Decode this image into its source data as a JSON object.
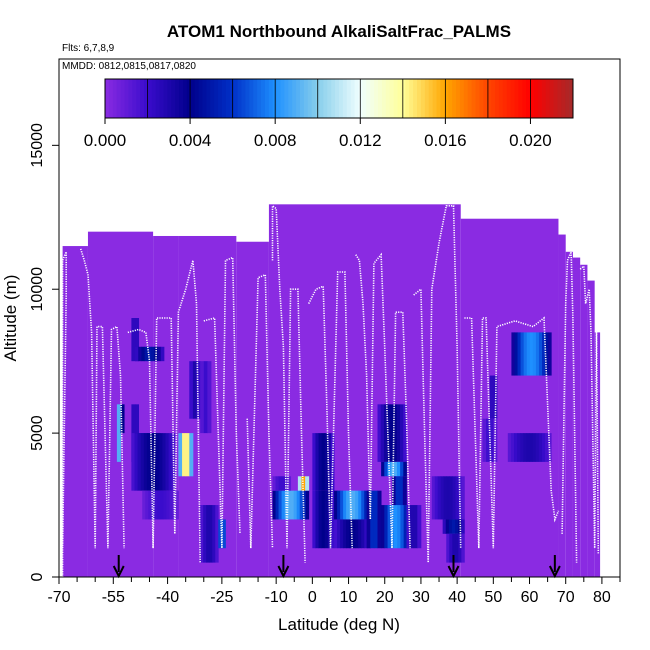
{
  "chart_data": {
    "type": "heatmap",
    "title": "ATOM1 Northbound AlkaliSaltFrac_PALMS",
    "subtitle_flights": "Flts: 6,7,8,9",
    "subtitle_dates": "MMDD: 0812,0815,0817,0820",
    "xlabel": "Latitude (deg N)",
    "ylabel": "Altitude (m)",
    "xlim": [
      -70,
      85
    ],
    "ylim": [
      0,
      18000
    ],
    "x_ticks": [
      "-70",
      "-55",
      "-40",
      "-25",
      "-10",
      "0",
      "10",
      "20",
      "30",
      "40",
      "50",
      "60",
      "70",
      "80"
    ],
    "x_tick_values": [
      -70,
      -55,
      -40,
      -25,
      -10,
      0,
      10,
      20,
      30,
      40,
      50,
      60,
      70,
      80
    ],
    "x_minor_values": [
      -65,
      -60,
      -50,
      -45,
      -35,
      -30,
      -20,
      -15,
      -5,
      5,
      15,
      25,
      35,
      45,
      55,
      65,
      75,
      85
    ],
    "y_ticks": [
      "0",
      "5000",
      "10000",
      "15000"
    ],
    "y_tick_values": [
      0,
      5000,
      10000,
      15000
    ],
    "colorbar": {
      "min": 0,
      "max": 0.022,
      "tick_labels": [
        "0.000",
        "0.004",
        "0.008",
        "0.012",
        "0.016",
        "0.020"
      ],
      "tick_values": [
        0,
        0.004,
        0.008,
        0.012,
        0.016,
        0.02
      ],
      "colors": [
        "#8a2be2",
        "#3a0ccc",
        "#00008b",
        "#0030c8",
        "#1e90ff",
        "#87ceeb",
        "#f0ffff",
        "#ffff99",
        "#ffa500",
        "#ff4500",
        "#ff0000",
        "#a52a2a"
      ]
    },
    "arrow_latitudes": [
      -53.5,
      -8,
      39,
      67
    ],
    "background_value": 0,
    "coverage_tops": [
      {
        "x0": -69,
        "x1": -62,
        "alt": 11500
      },
      {
        "x0": -62,
        "x1": -44,
        "alt": 12000
      },
      {
        "x0": -44,
        "x1": -37,
        "alt": 11850
      },
      {
        "x0": -37,
        "x1": -21,
        "alt": 11850
      },
      {
        "x0": -21,
        "x1": -12,
        "alt": 11650
      },
      {
        "x0": -12,
        "x1": 41,
        "alt": 12950
      },
      {
        "x0": 41,
        "x1": 68,
        "alt": 12450
      },
      {
        "x0": 68,
        "x1": 70,
        "alt": 11900
      },
      {
        "x0": 70,
        "x1": 72,
        "alt": 11300
      },
      {
        "x0": 72,
        "x1": 74,
        "alt": 11100
      },
      {
        "x0": 74,
        "x1": 76,
        "alt": 10850
      },
      {
        "x0": 76,
        "x1": 78,
        "alt": 10300
      },
      {
        "x0": 78,
        "x1": 79.5,
        "alt": 8500
      }
    ],
    "cells": [
      {
        "x0": -54,
        "x1": -53,
        "y0": 4000,
        "y1": 6000,
        "v": 0.009
      },
      {
        "x0": -53,
        "x1": -52,
        "y0": 5000,
        "y1": 6000,
        "v": 0.004
      },
      {
        "x0": -50,
        "x1": -48,
        "y0": 5000,
        "y1": 6000,
        "v": 0.003
      },
      {
        "x0": -50,
        "x1": -48,
        "y0": 7500,
        "y1": 9000,
        "v": 0.003
      },
      {
        "x0": -49,
        "x1": -41,
        "y0": 7500,
        "y1": 8000,
        "v": 0.005
      },
      {
        "x0": -50,
        "x1": -42,
        "y0": 4000,
        "y1": 5000,
        "v": 0.006
      },
      {
        "x0": -50,
        "x1": -38,
        "y0": 3000,
        "y1": 5000,
        "v": 0.004
      },
      {
        "x0": -47,
        "x1": -37,
        "y0": 2000,
        "y1": 3000,
        "v": 0.002
      },
      {
        "x0": -37,
        "x1": -33,
        "y0": 3500,
        "y1": 5000,
        "v": 0.015
      },
      {
        "x0": -34,
        "x1": -31,
        "y0": 5500,
        "y1": 7500,
        "v": 0.003
      },
      {
        "x0": -31,
        "x1": -28,
        "y0": 5000,
        "y1": 7500,
        "v": 0.002
      },
      {
        "x0": -31,
        "x1": -26,
        "y0": 500,
        "y1": 2500,
        "v": 0.003
      },
      {
        "x0": -26,
        "x1": -24,
        "y0": 1000,
        "y1": 2000,
        "v": 0.008
      },
      {
        "x0": -11,
        "x1": -1,
        "y0": 2000,
        "y1": 3000,
        "v": 0.009
      },
      {
        "x0": -11,
        "x1": -6,
        "y0": 3000,
        "y1": 3500,
        "v": 0.002
      },
      {
        "x0": -4,
        "x1": -1,
        "y0": 3000,
        "y1": 3500,
        "v": 0.016
      },
      {
        "x0": 0,
        "x1": 6,
        "y0": 3000,
        "y1": 5000,
        "v": 0.004
      },
      {
        "x0": 0,
        "x1": 6,
        "y0": 1000,
        "y1": 3000,
        "v": 0.004
      },
      {
        "x0": 6,
        "x1": 16,
        "y0": 2000,
        "y1": 3000,
        "v": 0.009
      },
      {
        "x0": 6,
        "x1": 16,
        "y0": 1000,
        "y1": 2000,
        "v": 0.004
      },
      {
        "x0": 15,
        "x1": 19,
        "y0": 1000,
        "y1": 3000,
        "v": 0.006
      },
      {
        "x0": 18,
        "x1": 26,
        "y0": 4000,
        "y1": 6000,
        "v": 0.004
      },
      {
        "x0": 19,
        "x1": 26,
        "y0": 3500,
        "y1": 4000,
        "v": 0.009
      },
      {
        "x0": 19,
        "x1": 27,
        "y0": 1000,
        "y1": 2500,
        "v": 0.008
      },
      {
        "x0": 22,
        "x1": 26,
        "y0": 2500,
        "y1": 3500,
        "v": 0.006
      },
      {
        "x0": 26,
        "x1": 30,
        "y0": 1000,
        "y1": 2500,
        "v": 0.003
      },
      {
        "x0": 33,
        "x1": 42,
        "y0": 2000,
        "y1": 3500,
        "v": 0.003
      },
      {
        "x0": 36,
        "x1": 42,
        "y0": 1500,
        "y1": 2000,
        "v": 0.005
      },
      {
        "x0": 37,
        "x1": 42,
        "y0": 500,
        "y1": 1500,
        "v": 0.003
      },
      {
        "x0": 47,
        "x1": 51,
        "y0": 4000,
        "y1": 5500,
        "v": 0.002
      },
      {
        "x0": 49,
        "x1": 51,
        "y0": 5500,
        "y1": 7000,
        "v": 0.003
      },
      {
        "x0": 55,
        "x1": 66,
        "y0": 7000,
        "y1": 8500,
        "v": 0.008
      },
      {
        "x0": 54,
        "x1": 66,
        "y0": 4000,
        "y1": 5000,
        "v": 0.003
      }
    ],
    "flight_tracks": [
      [
        [
          -69,
          0
        ],
        [
          -69,
          11000
        ],
        [
          -68,
          11300
        ],
        [
          -68,
          9800
        ],
        [
          -69,
          1000
        ]
      ],
      [
        [
          -64,
          11400
        ],
        [
          -63,
          11000
        ],
        [
          -62,
          10500
        ],
        [
          -61,
          8500
        ],
        [
          -60,
          1000
        ],
        [
          -59.5,
          8700
        ],
        [
          -58,
          8700
        ],
        [
          -56.5,
          1000
        ],
        [
          -55.5,
          8600
        ],
        [
          -54,
          8700
        ],
        [
          -53,
          7000
        ],
        [
          -52,
          1000
        ]
      ],
      [
        [
          -51,
          8500
        ],
        [
          -48,
          8600
        ],
        [
          -46,
          8500
        ],
        [
          -45,
          7500
        ],
        [
          -44,
          1000
        ],
        [
          -43,
          9000
        ],
        [
          -39,
          9000
        ],
        [
          -38,
          1500
        ],
        [
          -37,
          9200
        ],
        [
          -35,
          10000
        ],
        [
          -33,
          11000
        ],
        [
          -32,
          9500
        ],
        [
          -31,
          500
        ]
      ],
      [
        [
          -30,
          8900
        ],
        [
          -27,
          9000
        ],
        [
          -25,
          1000
        ],
        [
          -24,
          11000
        ],
        [
          -22,
          11100
        ],
        [
          -21,
          5000
        ],
        [
          -20,
          1500
        ]
      ],
      [
        [
          -18,
          5500
        ],
        [
          -17,
          1000
        ],
        [
          -15,
          10400
        ],
        [
          -13,
          10500
        ],
        [
          -12,
          5000
        ],
        [
          -11,
          1000
        ]
      ],
      [
        [
          -11,
          11000
        ],
        [
          -11,
          12900
        ],
        [
          -10,
          12800
        ],
        [
          -9,
          10000
        ],
        [
          -8,
          8000
        ],
        [
          -7,
          1000
        ],
        [
          -6,
          10000
        ],
        [
          -4,
          10000
        ],
        [
          -3,
          5000
        ],
        [
          -2,
          500
        ]
      ],
      [
        [
          -1,
          9500
        ],
        [
          1,
          10000
        ],
        [
          3,
          10100
        ],
        [
          4,
          6000
        ],
        [
          5,
          1000
        ],
        [
          7,
          10600
        ],
        [
          9,
          10600
        ],
        [
          10,
          5000
        ],
        [
          11,
          1000
        ]
      ],
      [
        [
          12,
          11200
        ],
        [
          13,
          11000
        ],
        [
          14,
          9500
        ],
        [
          15,
          7000
        ],
        [
          16,
          2000
        ],
        [
          17,
          10900
        ],
        [
          19,
          11200
        ],
        [
          20,
          8000
        ],
        [
          22,
          1000
        ],
        [
          23,
          9200
        ],
        [
          25,
          9200
        ],
        [
          26,
          5500
        ],
        [
          27,
          1000
        ]
      ],
      [
        [
          28,
          9800
        ],
        [
          30,
          10000
        ],
        [
          31,
          5000
        ],
        [
          32,
          500
        ],
        [
          33,
          10000
        ],
        [
          35,
          11600
        ],
        [
          37,
          12900
        ],
        [
          39,
          12900
        ],
        [
          40,
          8000
        ],
        [
          41,
          1000
        ]
      ],
      [
        [
          42,
          9000
        ],
        [
          44,
          9000
        ],
        [
          45,
          5000
        ],
        [
          46,
          1000
        ],
        [
          47,
          9000
        ],
        [
          48,
          9000
        ],
        [
          49,
          5000
        ],
        [
          50,
          1000
        ],
        [
          51,
          8700
        ],
        [
          56,
          8900
        ],
        [
          61,
          8700
        ],
        [
          64,
          9000
        ],
        [
          65,
          6000
        ],
        [
          66,
          3000
        ],
        [
          67,
          2000
        ],
        [
          68,
          2300
        ]
      ],
      [
        [
          69,
          1500
        ],
        [
          70,
          9500
        ],
        [
          70.5,
          11000
        ],
        [
          71.5,
          11300
        ],
        [
          72,
          9000
        ],
        [
          73,
          500
        ]
      ],
      [
        [
          74,
          10700
        ],
        [
          75,
          10800
        ],
        [
          75.5,
          9500
        ],
        [
          76.5,
          10000
        ],
        [
          77,
          8500
        ],
        [
          78,
          1000
        ],
        [
          78.5,
          8700
        ],
        [
          79,
          800
        ]
      ]
    ]
  }
}
